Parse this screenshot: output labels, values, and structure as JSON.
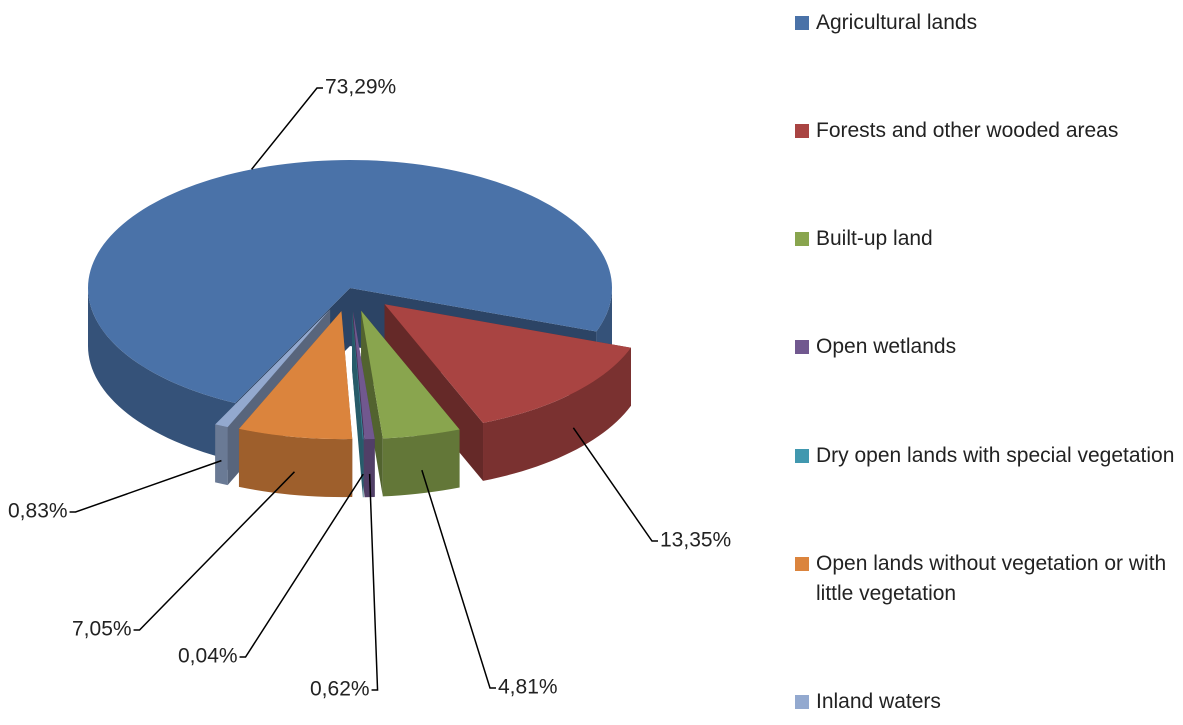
{
  "chart_data": {
    "type": "pie",
    "categories": [
      "Agricultural lands",
      "Forests and other wooded areas",
      "Built-up land",
      "Open wetlands",
      "Dry open lands with special vegetation",
      "Open lands without vegetation or with little vegetation",
      "Inland waters"
    ],
    "values": [
      73.29,
      13.35,
      4.81,
      0.62,
      0.04,
      7.05,
      0.83
    ],
    "value_labels": [
      "73,29%",
      "13,35%",
      "4,81%",
      "0,62%",
      "0,04%",
      "7,05%",
      "0,83%"
    ],
    "colors": [
      "#4a72a8",
      "#a94442",
      "#89a54e",
      "#71588f",
      "#4198af",
      "#db843d",
      "#93a9cf"
    ],
    "legend": "right"
  }
}
